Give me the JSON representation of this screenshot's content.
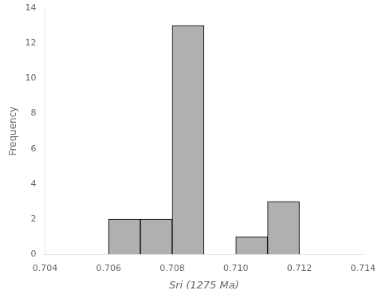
{
  "chart_data": {
    "type": "histogram",
    "bins": [
      0.704,
      0.705,
      0.706,
      0.707,
      0.708,
      0.709,
      0.71,
      0.711,
      0.712,
      0.713,
      0.714
    ],
    "values": [
      0,
      0,
      2,
      2,
      13,
      0,
      1,
      3,
      0,
      0
    ],
    "color": "#b0b0b0",
    "xlabel": "Sri (1275 Ma)",
    "ylabel": "Frequency",
    "xlim": [
      0.704,
      0.714
    ],
    "ylim": [
      0,
      14
    ],
    "xticks": [
      0.704,
      0.706,
      0.708,
      {
        "value": 0.71,
        "label": "0.710"
      },
      0.712,
      0.714
    ],
    "yticks": [
      0,
      2,
      4,
      6,
      8,
      10,
      12,
      14
    ],
    "grid": false
  }
}
